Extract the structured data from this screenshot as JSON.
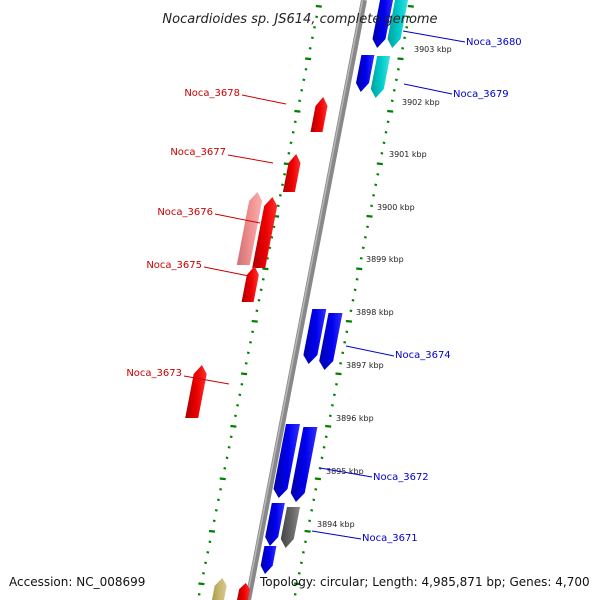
{
  "title": "Nocardioides sp. JS614, complete genome",
  "footer": {
    "accession": "Accession: NC_008699",
    "topology": "Topology: circular; Length: 4,985,871 bp; Genes: 4,700"
  },
  "colors": {
    "forward_gene": "#0000ee",
    "reverse_gene": "#ee0000",
    "reverse_gene_light": "#f09090",
    "cyan_gene": "#00cccc",
    "gray_gene": "#666666",
    "olive_gene": "#c8b870",
    "tick_green": "#008000",
    "backbone": "#888888"
  },
  "scale_labels": [
    "3903 kbp",
    "3902 kbp",
    "3901 kbp",
    "3900 kbp",
    "3899 kbp",
    "3898 kbp",
    "3897 kbp",
    "3896 kbp",
    "3895 kbp",
    "3894 kbp"
  ],
  "genes_labeled": {
    "right": [
      "Noca_3680",
      "Noca_3679",
      "Noca_3674",
      "Noca_3672",
      "Noca_3671"
    ],
    "left": [
      "Noca_3678",
      "Noca_3677",
      "Noca_3676",
      "Noca_3675",
      "Noca_3673"
    ]
  }
}
